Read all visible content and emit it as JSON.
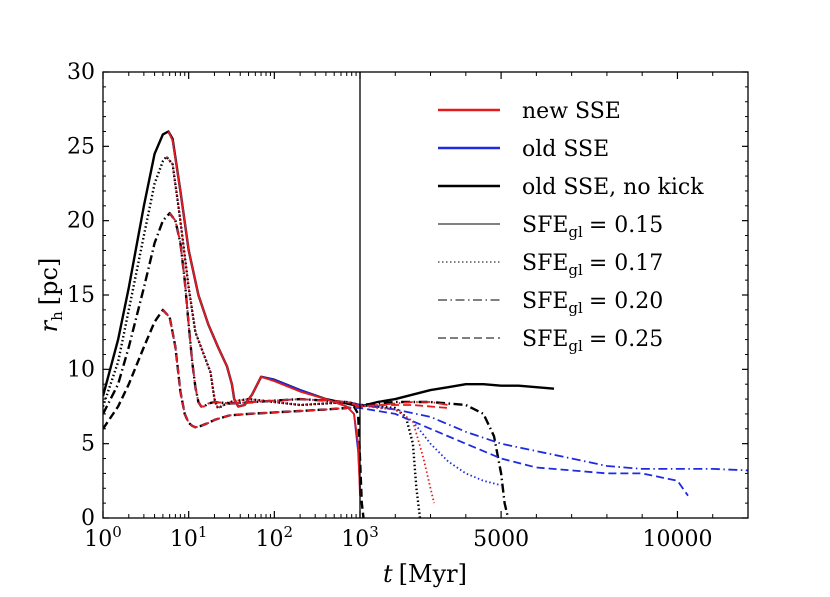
{
  "chart_data": {
    "type": "line",
    "title": "",
    "xlabel": "t [Myr]",
    "ylabel": "r_h [pc]",
    "xlabel_parts": {
      "var": "t",
      "unit": "[Myr]"
    },
    "ylabel_parts": {
      "var": "r",
      "sub": "h",
      "unit": "[pc]"
    },
    "ylim": [
      0,
      30
    ],
    "xaxis": {
      "scale": "log for 1–1000 Myr, linear for 1000–12000 Myr",
      "log_range": [
        1,
        1000
      ],
      "linear_range": [
        1000,
        12000
      ],
      "ticks": [
        {
          "value": 1,
          "base": "10",
          "exp": "0"
        },
        {
          "value": 10,
          "base": "10",
          "exp": "1"
        },
        {
          "value": 100,
          "base": "10",
          "exp": "2"
        },
        {
          "value": 1000,
          "base": "10",
          "exp": "3"
        },
        {
          "value": 5000,
          "label": "5000"
        },
        {
          "value": 10000,
          "label": "10000"
        }
      ]
    },
    "yticks": [
      "0",
      "5",
      "10",
      "15",
      "20",
      "25",
      "30"
    ],
    "legend": {
      "placement": "top-right",
      "colors": [
        {
          "label": "new SSE",
          "color": "#e41a1c"
        },
        {
          "label": "old SSE",
          "color": "#1f2be0"
        },
        {
          "label": "old SSE,  no kick",
          "color": "#000000"
        }
      ],
      "styles": [
        {
          "label": "SFE",
          "sub": "gl",
          "value": "= 0.15",
          "dash": "solid",
          "color": "#808080"
        },
        {
          "label": "SFE",
          "sub": "gl",
          "value": "= 0.17",
          "dash": "dotted",
          "color": "#808080"
        },
        {
          "label": "SFE",
          "sub": "gl",
          "value": "= 0.20",
          "dash": "dashdot",
          "color": "#808080"
        },
        {
          "label": "SFE",
          "sub": "gl",
          "value": "= 0.25",
          "dash": "dashed",
          "color": "#808080"
        }
      ]
    },
    "series": [
      {
        "name": "new SSE, SFE_gl = 0.15",
        "color": "#e41a1c",
        "dash": "solid",
        "x": [
          5.8,
          6.5,
          8,
          10,
          13,
          17,
          22,
          28,
          32,
          34,
          38,
          45,
          55,
          70,
          100,
          200,
          400,
          700,
          850,
          950,
          1000
        ],
        "y": [
          26,
          25.4,
          22,
          18,
          15,
          13,
          11.5,
          10.2,
          9,
          8,
          7.5,
          7.6,
          8.3,
          9.5,
          9.2,
          8.5,
          8.0,
          7.5,
          7.0,
          5.0,
          1.5
        ]
      },
      {
        "name": "old SSE, SFE_gl = 0.15",
        "color": "#1f2be0",
        "dash": "solid",
        "x": [
          5.8,
          6.5,
          8,
          10,
          13,
          17,
          22,
          28,
          32,
          34,
          38,
          45,
          55,
          70,
          100,
          200,
          400,
          700,
          850,
          950,
          1000
        ],
        "y": [
          26,
          25.4,
          22,
          18,
          15,
          13,
          11.5,
          10.2,
          9,
          8,
          7.5,
          7.6,
          8.3,
          9.5,
          9.3,
          8.6,
          8.0,
          7.5,
          7.0,
          4.5,
          2.0
        ]
      },
      {
        "name": "old SSE, no kick, SFE_gl = 0.15",
        "color": "#000000",
        "dash": "solid",
        "x": [
          1,
          1.5,
          2,
          3,
          4,
          5,
          5.8,
          6.5,
          8,
          10,
          13,
          17,
          22,
          28,
          32,
          34,
          38,
          45,
          55,
          70,
          100,
          200,
          400,
          700,
          1000,
          1500,
          2000,
          2500,
          3000,
          3500,
          4000,
          4500,
          5000,
          5500,
          6000,
          6500
        ],
        "y": [
          8.2,
          12,
          15.5,
          21,
          24.5,
          25.8,
          26,
          25.5,
          22,
          18,
          15,
          13,
          11.5,
          10.2,
          9,
          8,
          7.5,
          7.6,
          8.3,
          9.5,
          9.3,
          8.6,
          8.0,
          7.7,
          7.5,
          7.8,
          8.0,
          8.3,
          8.6,
          8.8,
          9.0,
          9.0,
          8.9,
          8.9,
          8.8,
          8.7
        ]
      },
      {
        "name": "new SSE, SFE_gl = 0.17",
        "color": "#e41a1c",
        "dash": "dotted",
        "x": [
          5.5,
          6.5,
          8,
          10,
          12,
          15,
          18,
          20,
          21,
          22,
          24,
          30,
          50,
          100,
          200,
          400,
          700,
          1000,
          1500,
          2000,
          2500,
          2800,
          3000,
          3100
        ],
        "y": [
          24.3,
          23.8,
          20,
          15.5,
          12.5,
          11,
          9.8,
          8,
          7.6,
          7.4,
          7.5,
          7.8,
          8.0,
          7.8,
          7.6,
          7.7,
          7.8,
          7.6,
          7.4,
          7.3,
          6.5,
          4.0,
          2.0,
          1.0
        ]
      },
      {
        "name": "old SSE, SFE_gl = 0.17",
        "color": "#1f2be0",
        "dash": "dotted",
        "x": [
          5.5,
          6.5,
          8,
          10,
          12,
          15,
          18,
          20,
          21,
          22,
          24,
          30,
          50,
          100,
          200,
          400,
          700,
          1000,
          1500,
          2000,
          2500,
          3000,
          3500,
          4000,
          4500,
          5000
        ],
        "y": [
          24.3,
          23.8,
          20,
          15.5,
          12.5,
          11,
          9.8,
          8,
          7.6,
          7.4,
          7.5,
          7.8,
          8.0,
          7.8,
          7.6,
          7.7,
          7.8,
          7.6,
          7.5,
          7.3,
          6.5,
          5.0,
          3.8,
          3.0,
          2.5,
          2.2
        ]
      },
      {
        "name": "old SSE, no kick, SFE_gl = 0.17",
        "color": "#000000",
        "dash": "dotted",
        "x": [
          1,
          1.5,
          2,
          3,
          4,
          5,
          5.5,
          6.5,
          8,
          10,
          12,
          15,
          18,
          20,
          21,
          22,
          24,
          30,
          50,
          100,
          200,
          400,
          700,
          1000,
          1500,
          2000,
          2300,
          2500,
          2600,
          2700
        ],
        "y": [
          7.5,
          10.5,
          14,
          19,
          22.5,
          24,
          24.3,
          23.8,
          20,
          15.5,
          12.5,
          11,
          9.8,
          8,
          7.6,
          7.4,
          7.5,
          7.8,
          8.0,
          7.8,
          7.6,
          7.7,
          7.8,
          7.6,
          7.5,
          7.4,
          6.8,
          5.0,
          2.0,
          0
        ]
      },
      {
        "name": "new SSE, SFE_gl = 0.20",
        "color": "#e41a1c",
        "dash": "dashdot",
        "x": [
          6,
          7,
          8,
          9,
          10,
          11,
          12,
          13,
          14,
          15,
          16,
          17,
          20,
          30,
          60,
          100,
          200,
          400,
          700,
          1000,
          1500,
          2000,
          2500,
          3000,
          3500
        ],
        "y": [
          20.5,
          20,
          18.5,
          16,
          13,
          10.5,
          8.8,
          7.8,
          7.5,
          7.5,
          7.6,
          7.7,
          7.8,
          7.7,
          7.8,
          7.9,
          8.0,
          7.9,
          7.8,
          7.5,
          7.6,
          7.7,
          7.8,
          7.8,
          7.6
        ]
      },
      {
        "name": "old SSE, SFE_gl = 0.20",
        "color": "#1f2be0",
        "dash": "dashdot",
        "x": [
          6,
          7,
          8,
          9,
          10,
          11,
          12,
          13,
          14,
          15,
          16,
          17,
          20,
          30,
          60,
          100,
          200,
          400,
          700,
          1000,
          2000,
          3000,
          4000,
          5000,
          6000,
          7000,
          8000,
          9000,
          10000,
          11000,
          12000
        ],
        "y": [
          20.5,
          20,
          18.5,
          16,
          13,
          10.5,
          8.8,
          7.8,
          7.5,
          7.5,
          7.6,
          7.7,
          7.8,
          7.7,
          7.8,
          7.9,
          8.0,
          7.9,
          7.8,
          7.6,
          7.3,
          6.8,
          5.8,
          5.0,
          4.5,
          4.0,
          3.5,
          3.3,
          3.3,
          3.3,
          3.2
        ]
      },
      {
        "name": "old SSE, no kick, SFE_gl = 0.20",
        "color": "#000000",
        "dash": "dashdot",
        "x": [
          1,
          1.5,
          2,
          3,
          4,
          5,
          6,
          7,
          8,
          9,
          10,
          11,
          12,
          13,
          14,
          15,
          16,
          17,
          20,
          30,
          60,
          100,
          200,
          400,
          700,
          1000,
          2000,
          3000,
          4000,
          4500,
          4800,
          5000,
          5100,
          5200
        ],
        "y": [
          7,
          9,
          11.5,
          15.5,
          18.5,
          20,
          20.5,
          20,
          18.5,
          16,
          13,
          10.5,
          8.8,
          7.8,
          7.5,
          7.5,
          7.6,
          7.7,
          7.8,
          7.7,
          7.8,
          7.9,
          8.0,
          7.9,
          7.8,
          7.6,
          7.8,
          7.8,
          7.6,
          7.0,
          5.5,
          3.0,
          1.0,
          0
        ]
      },
      {
        "name": "new SSE, SFE_gl = 0.25",
        "color": "#e41a1c",
        "dash": "dashed",
        "x": [
          5,
          6,
          7,
          8,
          9,
          10,
          11,
          12,
          14,
          17,
          20,
          30,
          50,
          100,
          200,
          400,
          700,
          1000,
          1500,
          2000,
          2500,
          3000,
          3500
        ],
        "y": [
          14,
          13.5,
          11.5,
          8.5,
          7,
          6.4,
          6.2,
          6.1,
          6.2,
          6.4,
          6.6,
          6.9,
          7.0,
          7.1,
          7.2,
          7.3,
          7.4,
          7.5,
          7.6,
          7.6,
          7.6,
          7.5,
          7.4
        ]
      },
      {
        "name": "old SSE, SFE_gl = 0.25",
        "color": "#1f2be0",
        "dash": "dashed",
        "x": [
          5,
          6,
          7,
          8,
          9,
          10,
          11,
          12,
          14,
          17,
          20,
          30,
          50,
          100,
          200,
          400,
          700,
          1000,
          2000,
          3000,
          4000,
          5000,
          6000,
          7000,
          8000,
          9000,
          10000,
          10300
        ],
        "y": [
          14,
          13.5,
          11.5,
          8.5,
          7,
          6.4,
          6.2,
          6.1,
          6.2,
          6.4,
          6.6,
          6.9,
          7.0,
          7.1,
          7.2,
          7.3,
          7.4,
          7.4,
          7.0,
          6.0,
          5.0,
          4.0,
          3.4,
          3.2,
          3.0,
          3.0,
          2.5,
          1.5
        ]
      },
      {
        "name": "old SSE, no kick, SFE_gl = 0.25",
        "color": "#000000",
        "dash": "dashed",
        "x": [
          1,
          1.5,
          2,
          3,
          4,
          5,
          6,
          7,
          8,
          9,
          10,
          11,
          12,
          14,
          17,
          20,
          30,
          50,
          100,
          200,
          400,
          700,
          850,
          950,
          1000,
          1050,
          1100
        ],
        "y": [
          6,
          7.5,
          9,
          11.5,
          13.2,
          14,
          13.5,
          11.5,
          8.5,
          7,
          6.4,
          6.2,
          6.1,
          6.2,
          6.4,
          6.6,
          6.9,
          7.0,
          7.1,
          7.2,
          7.3,
          7.4,
          7.5,
          7.0,
          4.0,
          1.0,
          0
        ]
      }
    ]
  }
}
